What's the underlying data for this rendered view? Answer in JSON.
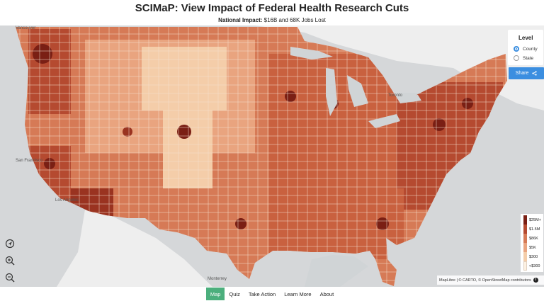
{
  "header": {
    "title": "SCIMaP: View Impact of Federal Health Research Cuts",
    "subtitle_prefix": "National Impact:",
    "subtitle_text": " $16B and 68K Jobs Lost"
  },
  "map": {
    "cities": [
      "Vancouver",
      "Toronto",
      "San Francisco",
      "Los Angeles",
      "Monterrey"
    ],
    "colors": {
      "background": "#d9dadb",
      "water": "#d0d4d6",
      "land_outside": "#f2f2f2"
    }
  },
  "level_panel": {
    "title": "Level",
    "options": [
      {
        "label": "County",
        "selected": true
      },
      {
        "label": "State",
        "selected": false
      }
    ]
  },
  "share": {
    "label": "Share",
    "icon": "share-icon"
  },
  "legend": {
    "items": [
      {
        "label": "$25M+",
        "color": "#7a1f14"
      },
      {
        "label": "$1.5M",
        "color": "#b54a30"
      },
      {
        "label": "$86K",
        "color": "#d67a56"
      },
      {
        "label": "$5K",
        "color": "#e9a47f"
      },
      {
        "label": "$300",
        "color": "#f4cda9"
      },
      {
        "label": "<$300",
        "color": "#fdf1e2"
      }
    ]
  },
  "attribution": {
    "text": "MapLibre | © CARTO, © OpenStreetMap contributors"
  },
  "controls": {
    "items": [
      {
        "name": "locate-icon"
      },
      {
        "name": "zoom-in-icon"
      },
      {
        "name": "zoom-out-icon"
      }
    ]
  },
  "nav": {
    "items": [
      {
        "label": "Map",
        "active": true
      },
      {
        "label": "Quiz",
        "active": false
      },
      {
        "label": "Take Action",
        "active": false
      },
      {
        "label": "Learn More",
        "active": false
      },
      {
        "label": "About",
        "active": false
      }
    ]
  }
}
